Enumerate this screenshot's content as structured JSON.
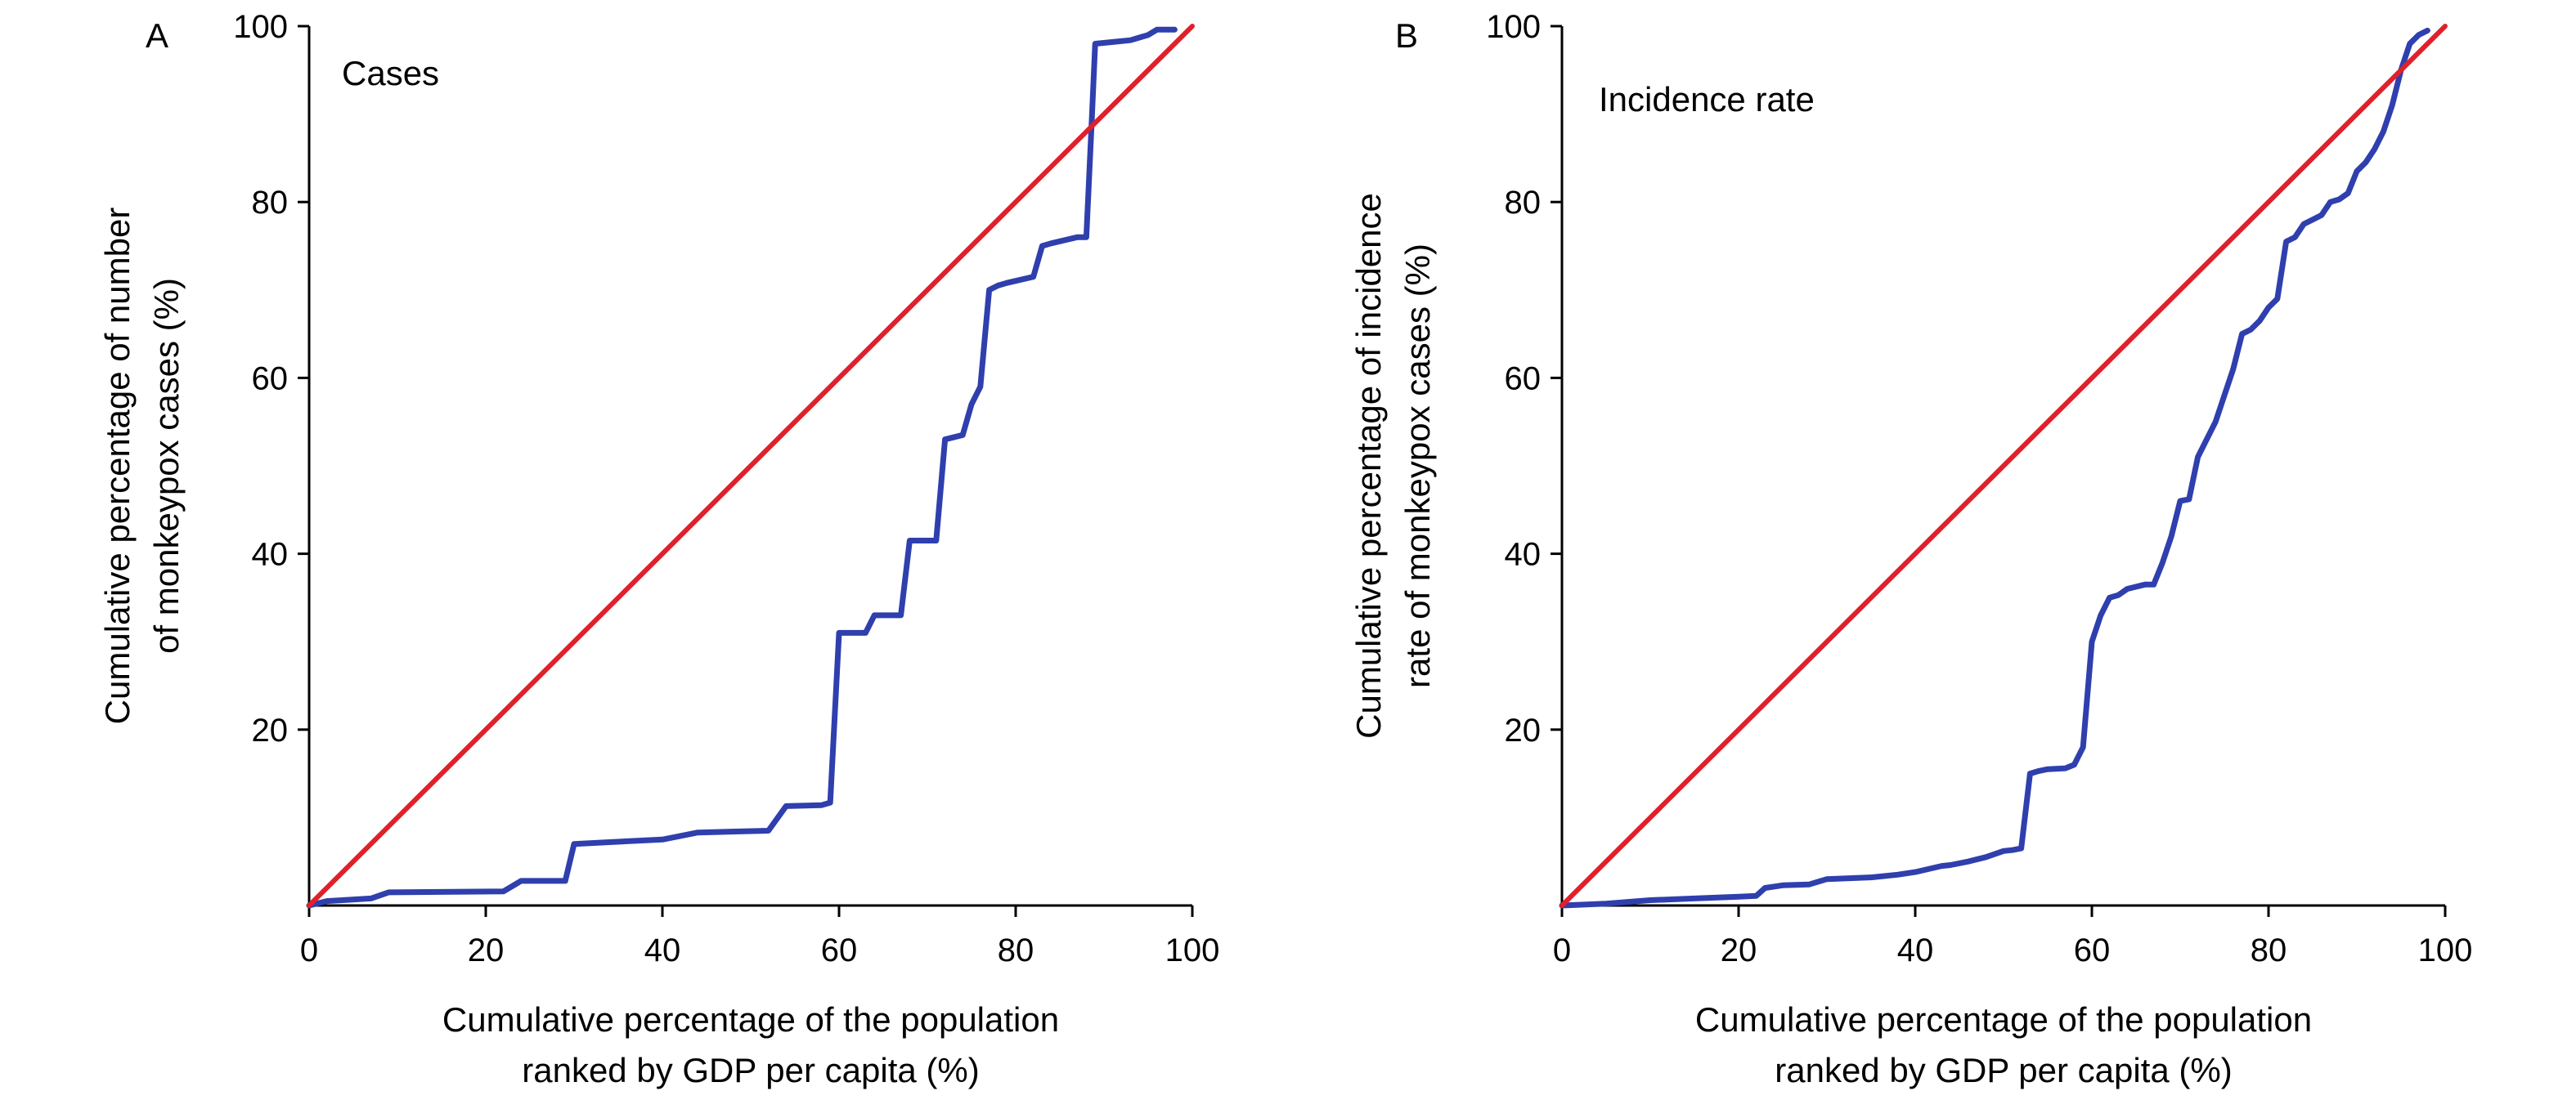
{
  "chart_data": [
    {
      "type": "line",
      "panel_label": "A",
      "title": "Cases",
      "xlabel": [
        "Cumulative percentage of the population",
        "ranked by GDP per capita (%)"
      ],
      "ylabel": [
        "Cumulative percentage of number",
        "of monkeypox cases (%)"
      ],
      "xlim": [
        0,
        100
      ],
      "ylim": [
        0,
        100
      ],
      "xticks": [
        0,
        20,
        40,
        60,
        80,
        100
      ],
      "yticks": [
        20,
        40,
        60,
        80,
        100
      ],
      "grid": false,
      "series": [
        {
          "color": "#2f3fae",
          "x": [
            0,
            2,
            7,
            9,
            22,
            24,
            29,
            30,
            34,
            40,
            44,
            52,
            54,
            58,
            59,
            60,
            63,
            64,
            67,
            68,
            71,
            72,
            74,
            75,
            76,
            77,
            78,
            79,
            82,
            83,
            84,
            87,
            88,
            88.6,
            89,
            91,
            93,
            95,
            96,
            98
          ],
          "y": [
            0,
            0.5,
            0.8,
            1.5,
            1.6,
            2.8,
            2.8,
            7,
            7.2,
            7.5,
            8.3,
            8.5,
            11.3,
            11.4,
            11.7,
            31,
            31,
            33,
            33,
            41.5,
            41.5,
            53,
            53.5,
            57,
            59,
            70,
            70.5,
            70.8,
            71.5,
            75,
            75.3,
            76,
            76,
            89,
            98,
            98.2,
            98.4,
            99,
            99.6,
            99.6
          ]
        },
        {
          "color": "#e0202a",
          "x": [
            0,
            100
          ],
          "y": [
            0,
            100
          ]
        }
      ]
    },
    {
      "type": "line",
      "panel_label": "B",
      "title": "Incidence rate",
      "xlabel": [
        "Cumulative percentage of the population",
        "ranked by GDP per capita (%)"
      ],
      "ylabel": [
        "Cumulative percentage of incidence",
        "rate of monkeypox cases (%)"
      ],
      "xlim": [
        0,
        100
      ],
      "ylim": [
        0,
        100
      ],
      "xticks": [
        0,
        20,
        40,
        60,
        80,
        100
      ],
      "yticks": [
        20,
        40,
        60,
        80,
        100
      ],
      "grid": false,
      "series": [
        {
          "color": "#2f3fae",
          "x": [
            0,
            5,
            10,
            15,
            20,
            22,
            23,
            25,
            28,
            30,
            35,
            38,
            40,
            43,
            44,
            46,
            48,
            50,
            51,
            52,
            53,
            54,
            55,
            57,
            58,
            59,
            60,
            61,
            62,
            63,
            64,
            66,
            67,
            68,
            69,
            70,
            71,
            72,
            73,
            74,
            75,
            76,
            77,
            78,
            79,
            80,
            81,
            82,
            83,
            84,
            85,
            86,
            87,
            88,
            89,
            90,
            91,
            92,
            93,
            94,
            95,
            96,
            97,
            98
          ],
          "y": [
            0,
            0.2,
            0.6,
            0.8,
            1.0,
            1.1,
            2.0,
            2.3,
            2.4,
            3.0,
            3.2,
            3.5,
            3.8,
            4.5,
            4.6,
            5.0,
            5.5,
            6.2,
            6.3,
            6.5,
            15.0,
            15.3,
            15.5,
            15.6,
            16.0,
            18.0,
            30.0,
            33.0,
            35.0,
            35.3,
            36.0,
            36.5,
            36.5,
            39.0,
            42.0,
            46.0,
            46.2,
            51.0,
            53.0,
            55.0,
            58.0,
            61.0,
            65.0,
            65.5,
            66.5,
            68.0,
            69.0,
            75.5,
            76.0,
            77.5,
            78.0,
            78.5,
            80.0,
            80.3,
            81.0,
            83.5,
            84.5,
            86.0,
            88.0,
            91.0,
            95.0,
            98.0,
            99.0,
            99.5
          ]
        },
        {
          "color": "#e0202a",
          "x": [
            0,
            100
          ],
          "y": [
            0,
            100
          ]
        }
      ]
    }
  ]
}
